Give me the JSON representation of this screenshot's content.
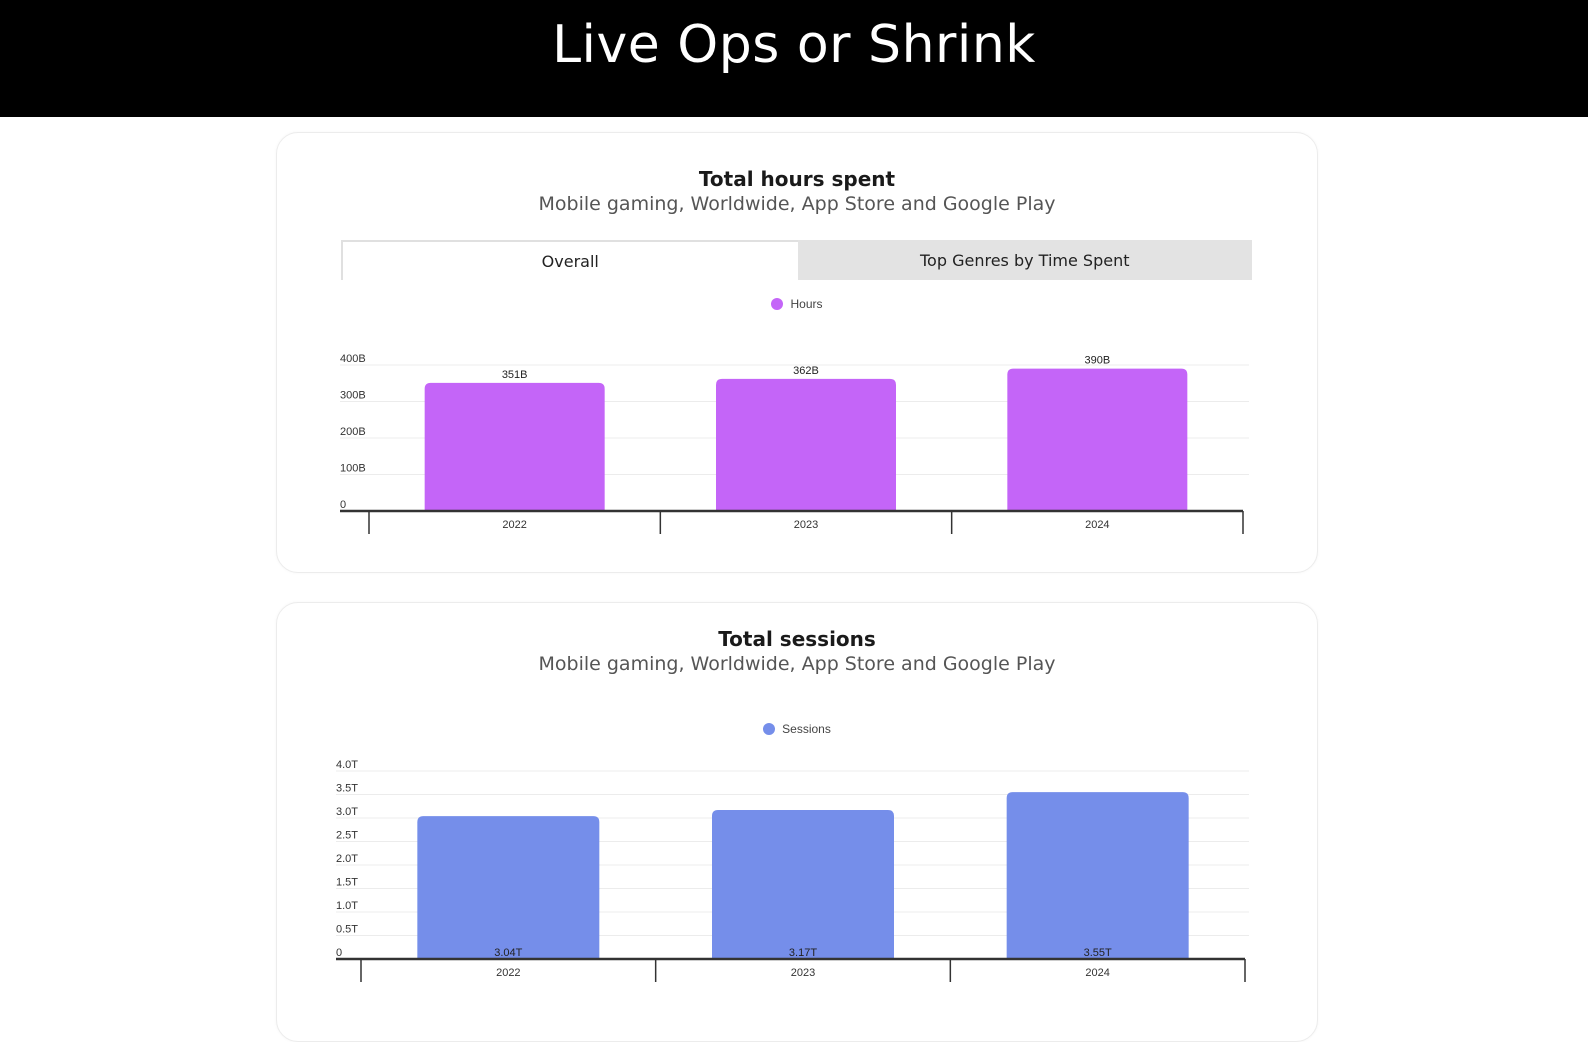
{
  "slide": {
    "title": "Live Ops or Shrink"
  },
  "hours_card": {
    "title": "Total hours spent",
    "subtitle": "Mobile gaming, Worldwide, App Store and Google Play",
    "tabs": [
      {
        "label": "Overall",
        "active": true
      },
      {
        "label": "Top Genres by Time Spent",
        "active": false
      }
    ]
  },
  "sessions_card": {
    "title": "Total sessions",
    "subtitle": "Mobile gaming, Worldwide, App Store and Google Play"
  },
  "colors": {
    "hours_bar": "#c465f8",
    "sessions_bar": "#758eea",
    "axis": "#333333",
    "grid": "#ececec",
    "tab_inactive": "#e3e3e3"
  },
  "chart_data": [
    {
      "type": "bar",
      "title": "Total hours spent",
      "subtitle": "Mobile gaming, Worldwide, App Store and Google Play",
      "categories": [
        "2022",
        "2023",
        "2024"
      ],
      "series": [
        {
          "name": "Hours",
          "values": [
            351,
            362,
            390
          ],
          "value_labels": [
            "351B",
            "362B",
            "390B"
          ],
          "color": "#c465f8"
        }
      ],
      "unit": "B",
      "ylim": [
        0,
        400
      ],
      "yticks": [
        0,
        100,
        200,
        300,
        400
      ],
      "ytick_labels": [
        "0",
        "100B",
        "200B",
        "300B",
        "400B"
      ],
      "label_position": "above",
      "legend": "top-center",
      "grid": true
    },
    {
      "type": "bar",
      "title": "Total sessions",
      "subtitle": "Mobile gaming, Worldwide, App Store and Google Play",
      "categories": [
        "2022",
        "2023",
        "2024"
      ],
      "series": [
        {
          "name": "Sessions",
          "values": [
            3.04,
            3.17,
            3.55
          ],
          "value_labels": [
            "3.04T",
            "3.17T",
            "3.55T"
          ],
          "color": "#758eea"
        }
      ],
      "unit": "T",
      "ylim": [
        0,
        4
      ],
      "yticks": [
        0,
        0.5,
        1,
        1.5,
        2,
        2.5,
        3,
        3.5,
        4
      ],
      "ytick_labels": [
        "0",
        "0.5T",
        "1.0T",
        "1.5T",
        "2.0T",
        "2.5T",
        "3.0T",
        "3.5T",
        "4.0T"
      ],
      "label_position": "inside-bottom",
      "legend": "top-center",
      "grid": true
    }
  ]
}
